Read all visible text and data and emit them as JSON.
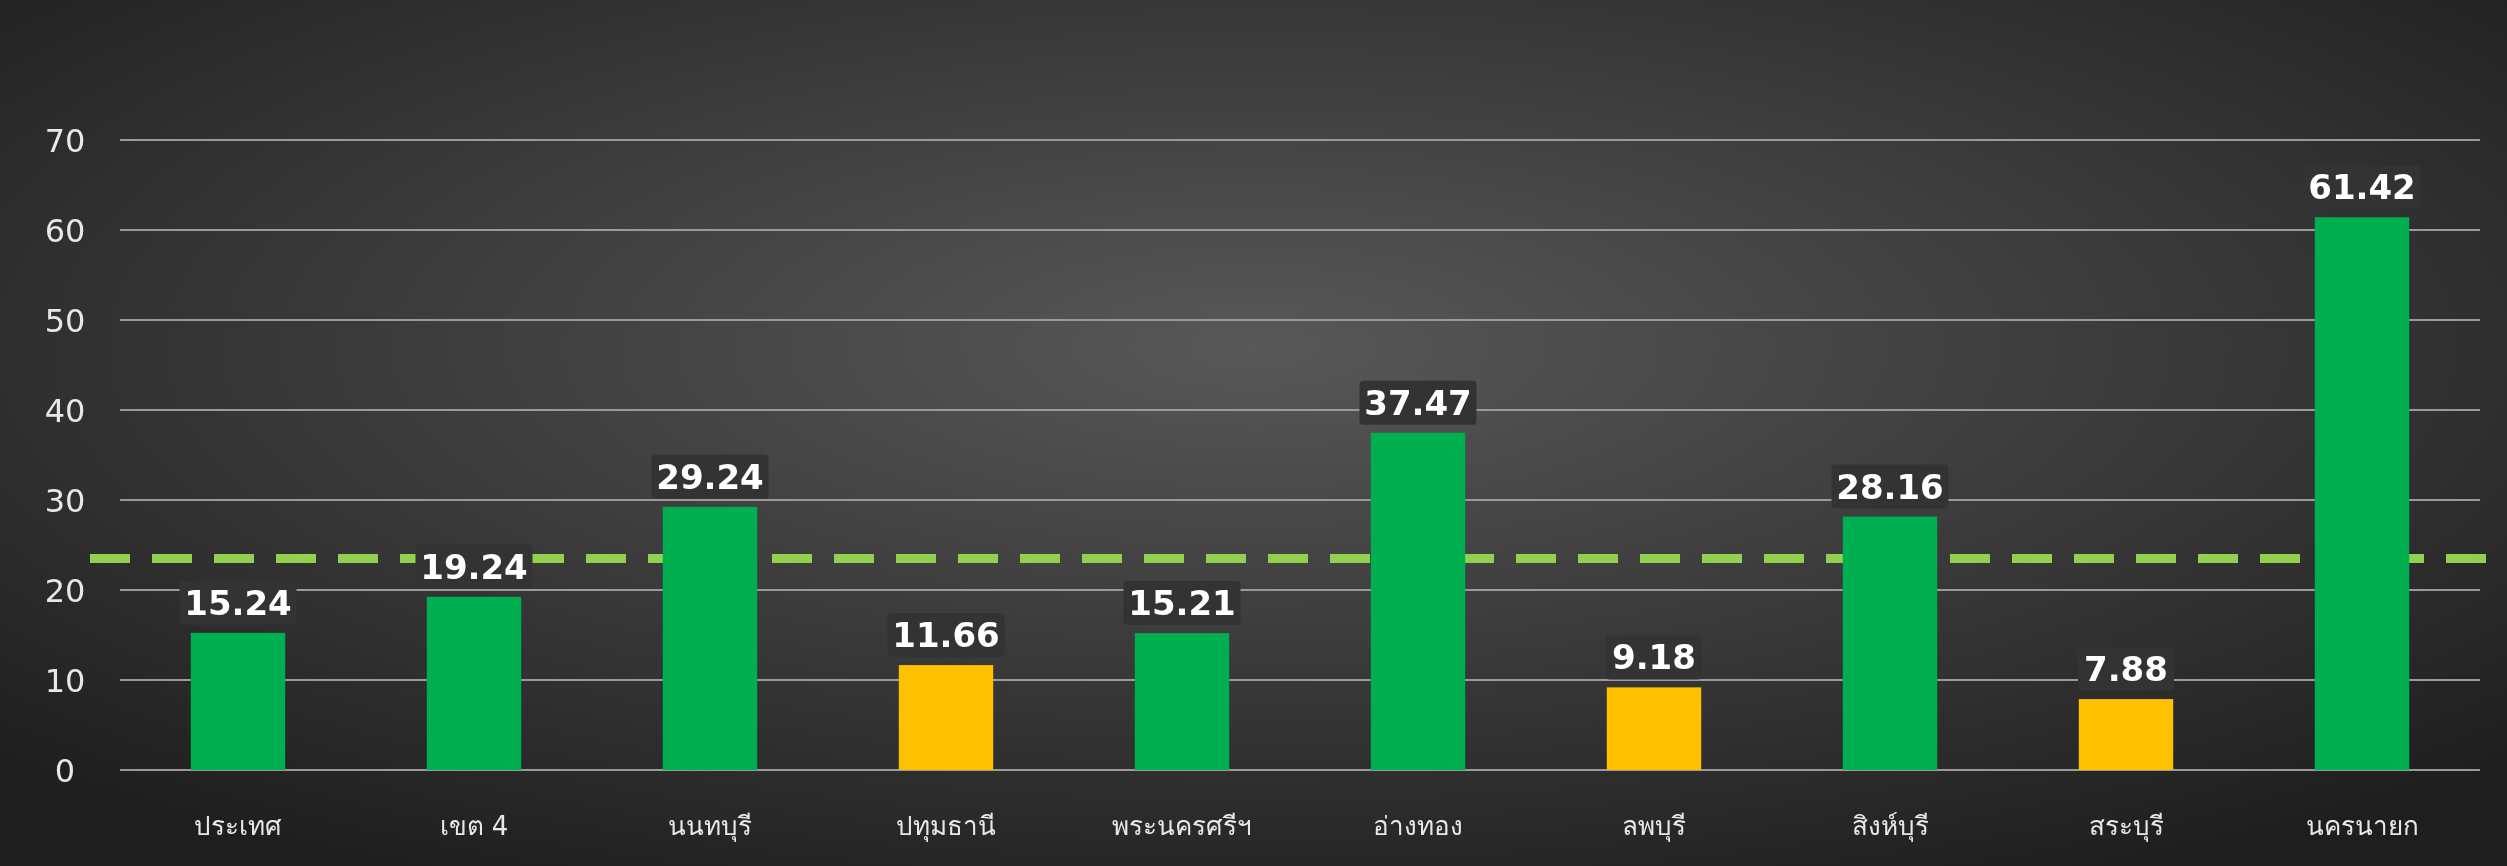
{
  "chart_data": {
    "type": "bar",
    "categories": [
      "ประเทศ",
      "เขต 4",
      "นนทบุรี",
      "ปทุมธานี",
      "พระนครศรีฯ",
      "อ่างทอง",
      "ลพบุรี",
      "สิงห์บุรี",
      "สระบุรี",
      "นครนายก"
    ],
    "values": [
      15.24,
      19.24,
      29.24,
      11.66,
      15.21,
      37.47,
      9.18,
      28.16,
      7.88,
      61.42
    ],
    "colors": [
      "#00b050",
      "#00b050",
      "#00b050",
      "#ffc000",
      "#00b050",
      "#00b050",
      "#ffc000",
      "#00b050",
      "#ffc000",
      "#00b050"
    ],
    "ylim": [
      0,
      70
    ],
    "yticks": [
      0,
      10,
      20,
      30,
      40,
      50,
      60,
      70
    ],
    "grid": "y",
    "data_labels": true,
    "ref_lines": [
      {
        "axis": "y",
        "value": 23.5,
        "color": "#92d050",
        "line_style": "dashed"
      }
    ]
  }
}
